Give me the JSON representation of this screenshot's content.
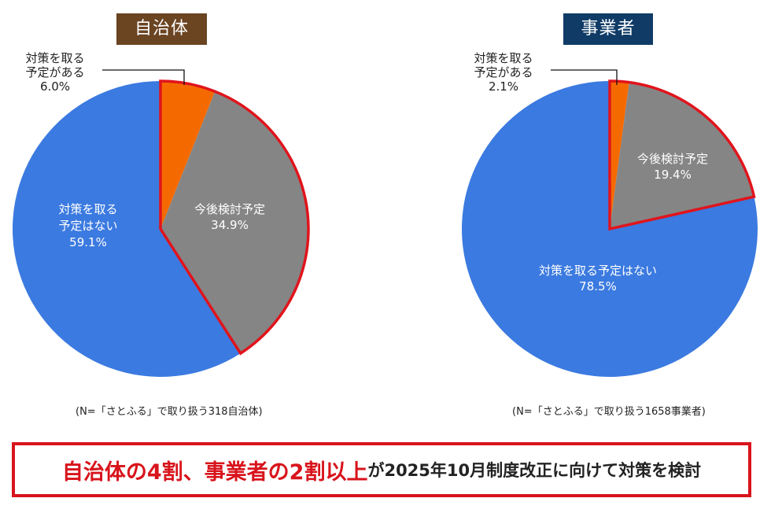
{
  "chart_data": [
    {
      "type": "pie",
      "title": "自治体",
      "note": "(N=「さとふる」で取り扱う318自治体)",
      "slices": [
        {
          "label": "対策を取る予定がある",
          "value": 6.0,
          "display": "6.0%",
          "color": "#f56a00",
          "label_lines": [
            "対策を取る",
            "予定がある",
            "6.0%"
          ],
          "highlight": true
        },
        {
          "label": "今後検討予定",
          "value": 34.9,
          "display": "34.9%",
          "color": "#858585",
          "label_lines": [
            "今後検討予定",
            "34.9%"
          ],
          "highlight": true
        },
        {
          "label": "対策を取る予定はない",
          "value": 59.1,
          "display": "59.1%",
          "color": "#3b7ae0",
          "label_lines": [
            "対策を取る",
            "予定はない",
            "59.1%"
          ],
          "highlight": false
        }
      ]
    },
    {
      "type": "pie",
      "title": "事業者",
      "note": "(N=「さとふる」で取り扱う1658事業者)",
      "slices": [
        {
          "label": "対策を取る予定がある",
          "value": 2.1,
          "display": "2.1%",
          "color": "#f56a00",
          "label_lines": [
            "対策を取る",
            "予定がある",
            "2.1%"
          ],
          "highlight": true
        },
        {
          "label": "今後検討予定",
          "value": 19.4,
          "display": "19.4%",
          "color": "#858585",
          "label_lines": [
            "今後検討予定",
            "19.4%"
          ],
          "highlight": true
        },
        {
          "label": "対策を取る予定はない",
          "value": 78.5,
          "display": "78.5%",
          "color": "#3b7ae0",
          "label_lines": [
            "対策を取る予定はない",
            "78.5%"
          ],
          "highlight": false
        }
      ]
    }
  ],
  "highlight_color": "#e0141c",
  "summary": {
    "highlight": "自治体の4割、事業者の2割以上",
    "rest": "が2025年10月制度改正に向けて対策を検討"
  }
}
